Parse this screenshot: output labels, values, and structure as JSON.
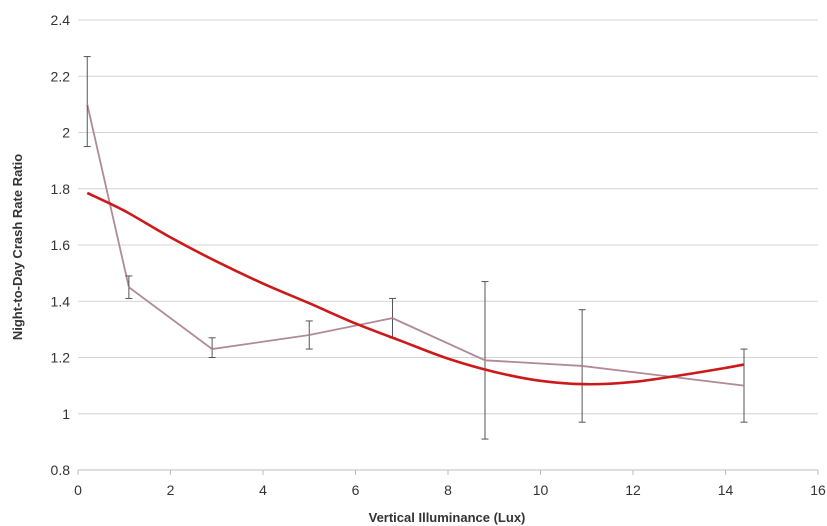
{
  "chart_data": {
    "type": "line",
    "title": "",
    "xlabel": "Vertical Illuminance (Lux)",
    "ylabel": "Night-to-Day Crash Rate Ratio",
    "xlim": [
      0,
      16
    ],
    "ylim": [
      0.8,
      2.4
    ],
    "x_ticks": [
      0,
      2,
      4,
      6,
      8,
      10,
      12,
      14,
      16
    ],
    "y_ticks": [
      0.8,
      1,
      1.2,
      1.4,
      1.6,
      1.8,
      2,
      2.2,
      2.4
    ],
    "x_tick_labels": [
      "0",
      "2",
      "4",
      "6",
      "8",
      "10",
      "12",
      "14",
      "16"
    ],
    "y_tick_labels": [
      "0.8",
      "1",
      "1.2",
      "1.4",
      "1.6",
      "1.8",
      "2",
      "2.2",
      "2.4"
    ],
    "grid": "horizontal",
    "series": [
      {
        "kind": "observed-with-error-bars",
        "color": "#b08a96",
        "points": [
          {
            "x": 0.2,
            "y": 2.1,
            "err_low": 1.95,
            "err_high": 2.27
          },
          {
            "x": 1.1,
            "y": 1.45,
            "err_low": 1.41,
            "err_high": 1.49
          },
          {
            "x": 2.9,
            "y": 1.23,
            "err_low": 1.2,
            "err_high": 1.27
          },
          {
            "x": 5.0,
            "y": 1.28,
            "err_low": 1.23,
            "err_high": 1.33
          },
          {
            "x": 6.8,
            "y": 1.34,
            "err_low": 1.27,
            "err_high": 1.41
          },
          {
            "x": 8.8,
            "y": 1.19,
            "err_low": 0.91,
            "err_high": 1.47
          },
          {
            "x": 10.9,
            "y": 1.17,
            "err_low": 0.97,
            "err_high": 1.37
          },
          {
            "x": 14.4,
            "y": 1.1,
            "err_low": 0.97,
            "err_high": 1.23
          }
        ]
      },
      {
        "kind": "fitted-curve",
        "color": "#cc1a1a",
        "x": [
          0.2,
          1,
          2,
          3,
          4,
          5,
          6,
          7,
          8,
          9,
          10,
          11,
          12,
          13,
          14,
          14.4
        ],
        "y": [
          1.785,
          1.722,
          1.627,
          1.541,
          1.463,
          1.393,
          1.321,
          1.258,
          1.196,
          1.149,
          1.117,
          1.105,
          1.113,
          1.136,
          1.163,
          1.175
        ]
      }
    ]
  }
}
